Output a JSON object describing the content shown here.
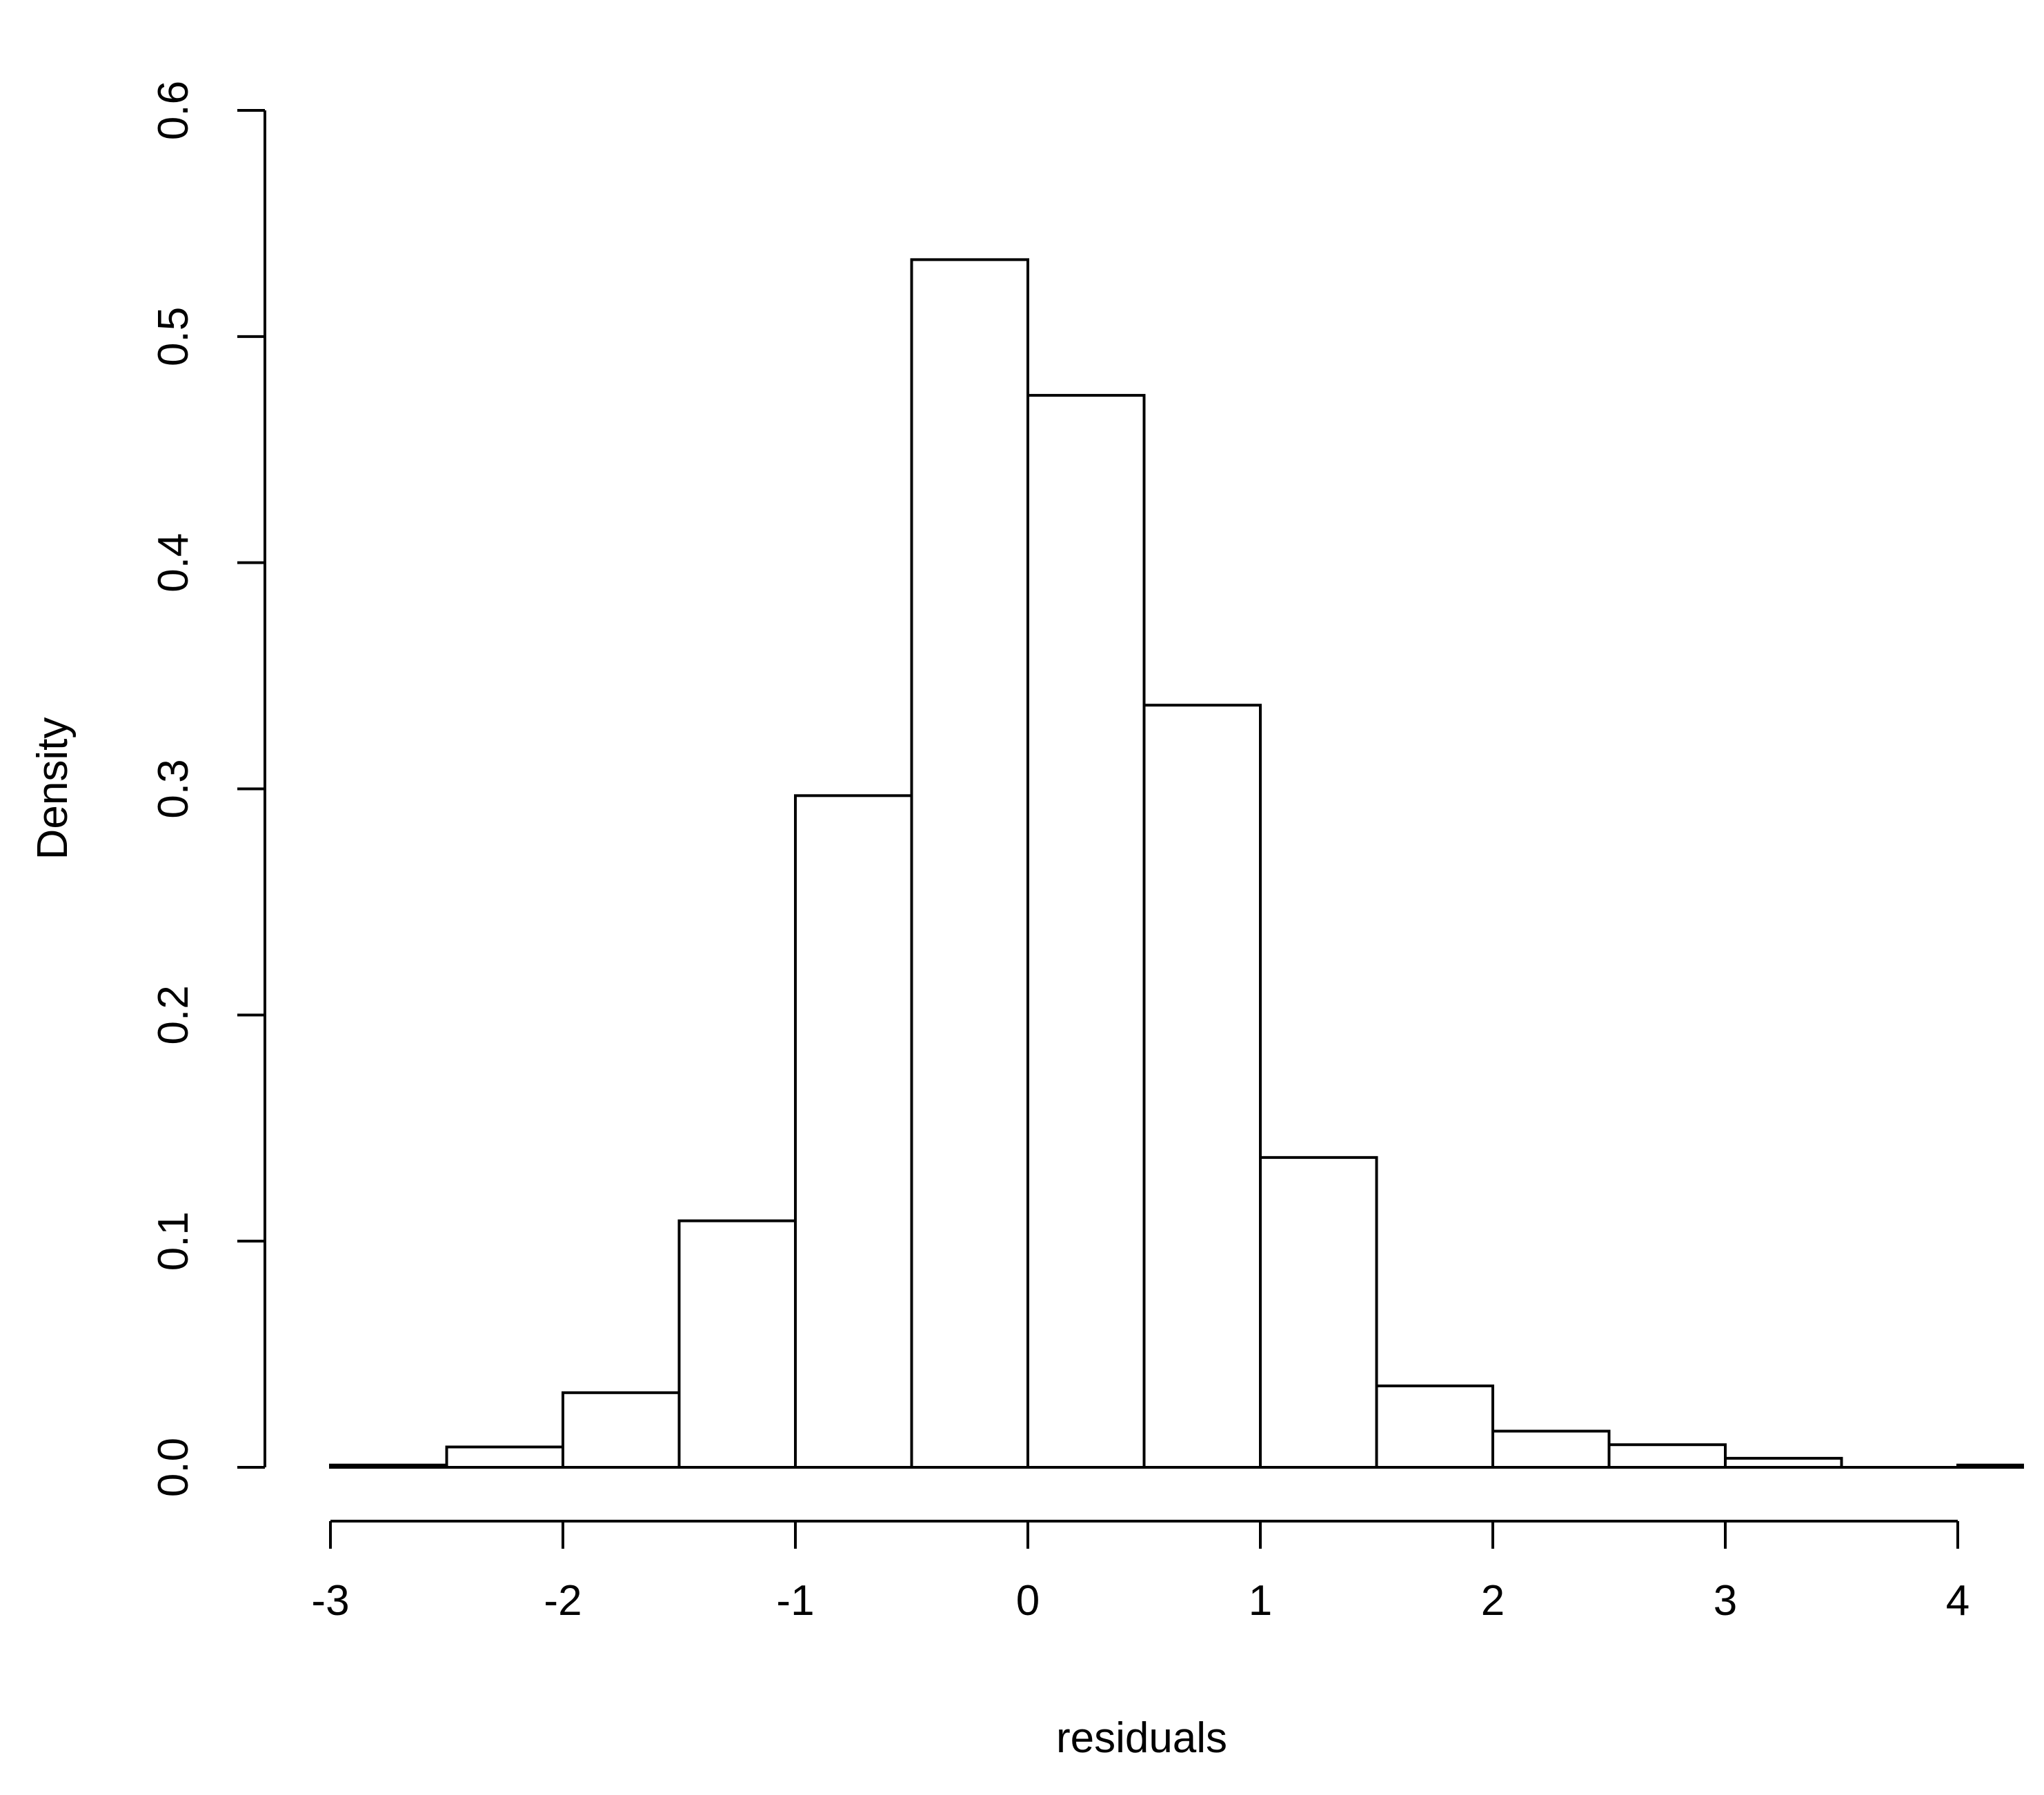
{
  "chart_data": {
    "type": "bar",
    "subtype": "histogram",
    "title": "",
    "xlabel": "residuals",
    "ylabel": "Density",
    "xlim": [
      -3,
      4.3
    ],
    "ylim": [
      0,
      0.6
    ],
    "x_ticks": [
      -3,
      -2,
      -1,
      0,
      1,
      2,
      3,
      4
    ],
    "x_tick_labels": [
      "-3",
      "-2",
      "-1",
      "0",
      "1",
      "2",
      "3",
      "4"
    ],
    "y_ticks": [
      0,
      0.1,
      0.2,
      0.3,
      0.4,
      0.5,
      0.6
    ],
    "y_tick_labels": [
      "0.0",
      "0.1",
      "0.2",
      "0.3",
      "0.4",
      "0.5",
      "0.6"
    ],
    "bin_width": 0.5,
    "bins": [
      {
        "x0": -3.0,
        "x1": -2.5,
        "density": 0.001
      },
      {
        "x0": -2.5,
        "x1": -2.0,
        "density": 0.009
      },
      {
        "x0": -2.0,
        "x1": -1.5,
        "density": 0.033
      },
      {
        "x0": -1.5,
        "x1": -1.0,
        "density": 0.109
      },
      {
        "x0": -1.0,
        "x1": -0.5,
        "density": 0.297
      },
      {
        "x0": -0.5,
        "x1": 0.0,
        "density": 0.534
      },
      {
        "x0": 0.0,
        "x1": 0.5,
        "density": 0.474
      },
      {
        "x0": 0.5,
        "x1": 1.0,
        "density": 0.337
      },
      {
        "x0": 1.0,
        "x1": 1.5,
        "density": 0.137
      },
      {
        "x0": 1.5,
        "x1": 2.0,
        "density": 0.036
      },
      {
        "x0": 2.0,
        "x1": 2.5,
        "density": 0.016
      },
      {
        "x0": 2.5,
        "x1": 3.0,
        "density": 0.01
      },
      {
        "x0": 3.0,
        "x1": 3.5,
        "density": 0.004
      },
      {
        "x0": 3.5,
        "x1": 4.0,
        "density": 0.0
      },
      {
        "x0": 4.0,
        "x1": 4.5,
        "density": 0.001
      }
    ],
    "grid": false,
    "legend": "none",
    "colors": {
      "bar_fill": "#ffffff",
      "bar_stroke": "#000000",
      "background": "#ffffff"
    }
  }
}
